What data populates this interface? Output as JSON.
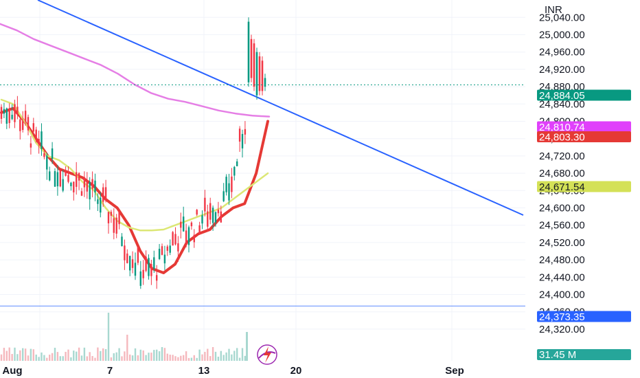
{
  "chart_data": {
    "type": "candlestick",
    "currency": "INR",
    "ylim": [
      24290,
      25075
    ],
    "y_ticks": [
      24320,
      24360,
      24400,
      24440,
      24480,
      24520,
      24560,
      24600,
      24640,
      24680,
      24720,
      24760,
      24800,
      24840,
      24880,
      24920,
      24960,
      25000,
      25040
    ],
    "y_tick_labels": [
      "24,320.00",
      "24,360.00",
      "24,400.00",
      "24,440.00",
      "24,480.00",
      "24,520.00",
      "24,560.00",
      "24,600.00",
      "24,640.00",
      "24,680.00",
      "24,720.00",
      "24,760.00",
      "24,800.00",
      "24,840.00",
      "24,880.00",
      "24,920.00",
      "24,960.00",
      "25,000.00",
      "25,040.00"
    ],
    "x_labels": [
      "Aug",
      "7",
      "13",
      "20",
      "Sep"
    ],
    "grid": true,
    "price_tags": [
      {
        "label": "24,884.05",
        "value": 24884.05,
        "color": "#089981"
      },
      {
        "label": "24,810.74",
        "value": 24810.74,
        "color": "#e040fb"
      },
      {
        "label": "24,803.30",
        "value": 24803.3,
        "color": "#e53935"
      },
      {
        "label": "24,671.54",
        "value": 24671.54,
        "color": "#d4e157"
      },
      {
        "label": "24,373.35",
        "value": 24373.35,
        "color": "#2962ff"
      }
    ],
    "volume_tag": {
      "label": "31.45 M",
      "color": "#26a69a"
    },
    "horizontal_line": {
      "value": 24373.35,
      "color": "#5b8cff"
    },
    "trendline": {
      "color": "#2962ff"
    },
    "series": [
      {
        "kind": "ema",
        "color": "#e53935",
        "values": [
          24820,
          24830,
          24800,
          24760,
          24720,
          24690,
          24680,
          24670,
          24650,
          24620,
          24600,
          24560,
          24500,
          24460,
          24450,
          24470,
          24520,
          24540,
          24550,
          24580,
          24600,
          24610,
          24680,
          24800
        ]
      },
      {
        "kind": "sma-short",
        "color": "#dce775",
        "values": [
          24850,
          24840,
          24800,
          24750,
          24720,
          24710,
          24690,
          24660,
          24640,
          24600,
          24570,
          24555,
          24548,
          24548,
          24550,
          24560,
          24570,
          24580,
          24590,
          24600,
          24620,
          24640,
          24660,
          24680
        ]
      },
      {
        "kind": "sma-long",
        "color": "#e57ee5",
        "values": [
          25025,
          25010,
          24990,
          24975,
          24960,
          24945,
          24930,
          24910,
          24885,
          24865,
          24852,
          24845,
          24835,
          24825,
          24818,
          24813,
          24811
        ]
      }
    ]
  },
  "watermark_icon": "lightning-badge-icon"
}
